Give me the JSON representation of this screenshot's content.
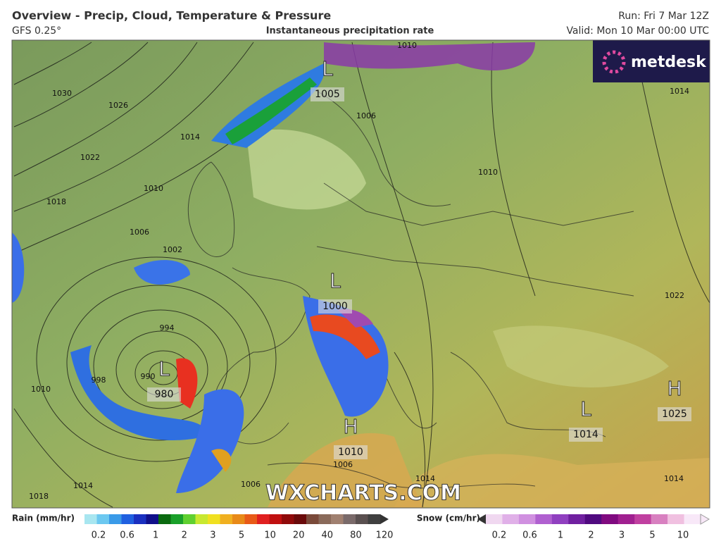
{
  "header": {
    "title": "Overview - Precip, Cloud, Temperature & Pressure",
    "model": "GFS 0.25°",
    "subtitle": "Instantaneous precipitation rate",
    "run": "Run: Fri 7 Mar 12Z",
    "valid": "Valid: Mon 10 Mar 00:00 UTC"
  },
  "logo": "metdesk",
  "watermark": "WXCHARTS.COM",
  "centers": [
    {
      "symbol": "L",
      "pressure": "1005"
    },
    {
      "symbol": "L",
      "pressure": "1000"
    },
    {
      "symbol": "L",
      "pressure": "980"
    },
    {
      "symbol": "H",
      "pressure": "1010"
    },
    {
      "symbol": "L",
      "pressure": "1014"
    },
    {
      "symbol": "H",
      "pressure": "1025"
    }
  ],
  "isobar_labels": [
    "1030",
    "1026",
    "1022",
    "1018",
    "1014",
    "1010",
    "1006",
    "1002",
    "998",
    "994",
    "990",
    "1010",
    "1014",
    "1018",
    "1006",
    "1010",
    "1010",
    "1014",
    "1022",
    "1006",
    "1006",
    "1014",
    "1014"
  ],
  "legend": {
    "rain": {
      "label": "Rain (mm/hr)",
      "ticks": [
        0.2,
        0.6,
        1,
        2,
        3,
        5,
        10,
        20,
        40,
        80,
        120
      ]
    },
    "snow": {
      "label": "Snow (cm/hr)",
      "ticks": [
        0.2,
        0.6,
        1,
        2,
        3,
        5,
        10
      ]
    }
  }
}
